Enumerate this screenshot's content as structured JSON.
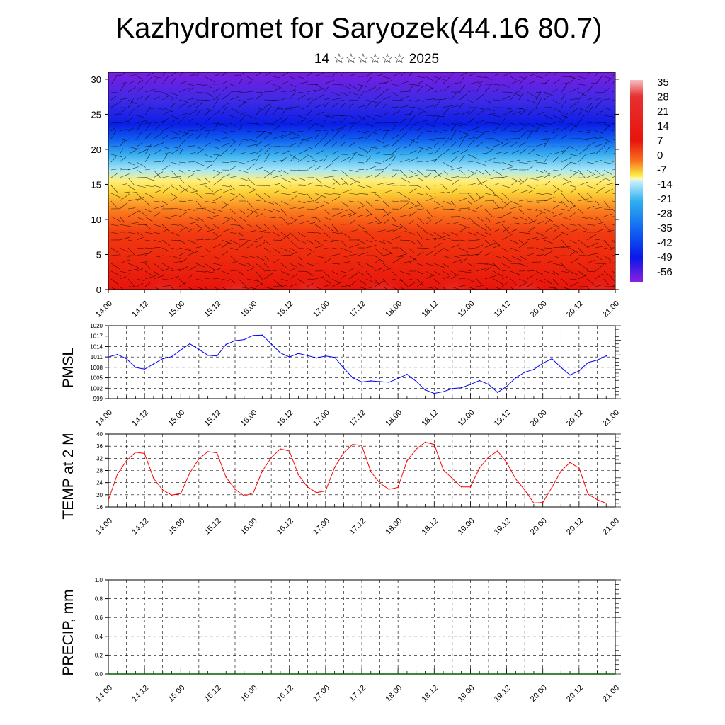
{
  "title": "Kazhydromet for Saryozek(44.16 80.7)",
  "subtitle": "14 ☆☆☆☆☆☆ 2025",
  "time_ticks": [
    "14.00",
    "14.12",
    "15.00",
    "15.12",
    "16.00",
    "16.12",
    "17.00",
    "17.12",
    "18.00",
    "18.12",
    "19.00",
    "19.12",
    "20.00",
    "20.12",
    "21.00"
  ],
  "chart_data": [
    {
      "type": "heatmap",
      "name_note": "",
      "ylim": [
        0,
        31
      ],
      "yticks": [
        0,
        5,
        10,
        15,
        20,
        25,
        30
      ],
      "colorbar_labels": [
        "35",
        "28",
        "21",
        "14",
        "7",
        "0",
        "-7",
        "-14",
        "-21",
        "-28",
        "-35",
        "-42",
        "-49",
        "-56"
      ],
      "colors": {
        "warm_peak": "#f2a0a0",
        "red": "#e8160c",
        "orange": "#f87020",
        "yellow": "#fbe840",
        "light_blue": "#a0e4f8",
        "blue": "#1060f0",
        "deep_blue": "#0018e8",
        "violet": "#7020e0"
      }
    },
    {
      "type": "line",
      "ylabel": "PMSL",
      "ylim": [
        999,
        1020
      ],
      "yticks": [
        "999",
        "1002",
        "1005",
        "1008",
        "1011",
        "1014",
        "1017",
        "1020"
      ],
      "x_tick_labels": [
        "14.00",
        "14.12",
        "15.00",
        "15.12",
        "16.00",
        "16.12",
        "17.00",
        "17.12",
        "18.00",
        "18.12",
        "19.00",
        "19.12",
        "20.00",
        "20.12",
        "21.00"
      ],
      "x": [
        0,
        3,
        6,
        9,
        12,
        15,
        18,
        21,
        24,
        27,
        30,
        33,
        36,
        39,
        42,
        45,
        48,
        51,
        54,
        57,
        60,
        63,
        66,
        69,
        72,
        75,
        78,
        81,
        84,
        87,
        90,
        93,
        96,
        99,
        102,
        105,
        108,
        111,
        114,
        117,
        120,
        123,
        126,
        129,
        132,
        135,
        138,
        141,
        144,
        147,
        150,
        153,
        156,
        159,
        162,
        165
      ],
      "values": [
        1011,
        1011.7,
        1010.5,
        1008,
        1007.5,
        1009,
        1010.5,
        1011.1,
        1013,
        1014.8,
        1013.2,
        1011.5,
        1011.3,
        1014.6,
        1015.7,
        1016,
        1017.2,
        1017.3,
        1014.8,
        1012.2,
        1011,
        1012,
        1011.4,
        1010.7,
        1011.3,
        1010.9,
        1007.8,
        1005,
        1003.8,
        1004.1,
        1003.9,
        1003.7,
        1004.8,
        1006,
        1004,
        1001.5,
        1000.5,
        1001,
        1001.9,
        1002.1,
        1003.1,
        1004.2,
        1003.1,
        1000.8,
        1002.5,
        1005,
        1006.6,
        1007.4,
        1009.2,
        1010.5,
        1008,
        1005.8,
        1007,
        1009.4,
        1010.1,
        1011.3
      ],
      "series_color": "#0000ff"
    },
    {
      "type": "line",
      "ylabel": "TEMP at 2 M",
      "ylim": [
        16,
        40
      ],
      "yticks": [
        "16",
        "20",
        "24",
        "28",
        "32",
        "36",
        "40"
      ],
      "x_tick_labels": [
        "14.00",
        "14.12",
        "15.00",
        "15.12",
        "16.00",
        "16.12",
        "17.00",
        "17.12",
        "18.00",
        "18.12",
        "19.00",
        "19.12",
        "20.00",
        "20.12",
        "21.00"
      ],
      "x": [
        0,
        3,
        6,
        9,
        12,
        15,
        18,
        21,
        24,
        27,
        30,
        33,
        36,
        39,
        42,
        45,
        48,
        51,
        54,
        57,
        60,
        63,
        66,
        69,
        72,
        75,
        78,
        81,
        84,
        87,
        90,
        93,
        96,
        99,
        102,
        105,
        108,
        111,
        114,
        117,
        120,
        123,
        126,
        129,
        132,
        135,
        138,
        141,
        144,
        147,
        150,
        153,
        156,
        159,
        162,
        165
      ],
      "values": [
        18.2,
        26.8,
        31.2,
        34,
        33.6,
        25.4,
        21.6,
        19.9,
        20.4,
        27.2,
        31.8,
        34.2,
        33.8,
        25.8,
        21.8,
        19.6,
        20.6,
        27.8,
        32.2,
        35.1,
        34.4,
        26.6,
        22.6,
        20.7,
        21.3,
        29,
        33.8,
        36.6,
        36.2,
        27.6,
        23.8,
        21.8,
        22.4,
        31.2,
        35,
        37.3,
        36.6,
        28.2,
        25.4,
        22.6,
        22.6,
        28.8,
        32.4,
        34.4,
        30.6,
        25.2,
        21.6,
        17.3,
        17.5,
        22.4,
        27.8,
        30.6,
        28.8,
        20.2,
        18.4,
        17.2
      ],
      "series_color": "#ff0000"
    },
    {
      "type": "line",
      "ylabel": "PRECIP, mm",
      "ylim": [
        0,
        1
      ],
      "yticks": [
        "0.0",
        "0.2",
        "0.4",
        "0.6",
        "0.8",
        "1.0"
      ],
      "x_tick_labels": [
        "14.00",
        "14.12",
        "15.00",
        "15.12",
        "16.00",
        "16.12",
        "17.00",
        "17.12",
        "18.00",
        "18.12",
        "19.00",
        "19.12",
        "20.00",
        "20.12",
        "21.00"
      ],
      "x": [
        0,
        168
      ],
      "values": [
        0,
        0
      ],
      "series_color": "#006000"
    }
  ]
}
